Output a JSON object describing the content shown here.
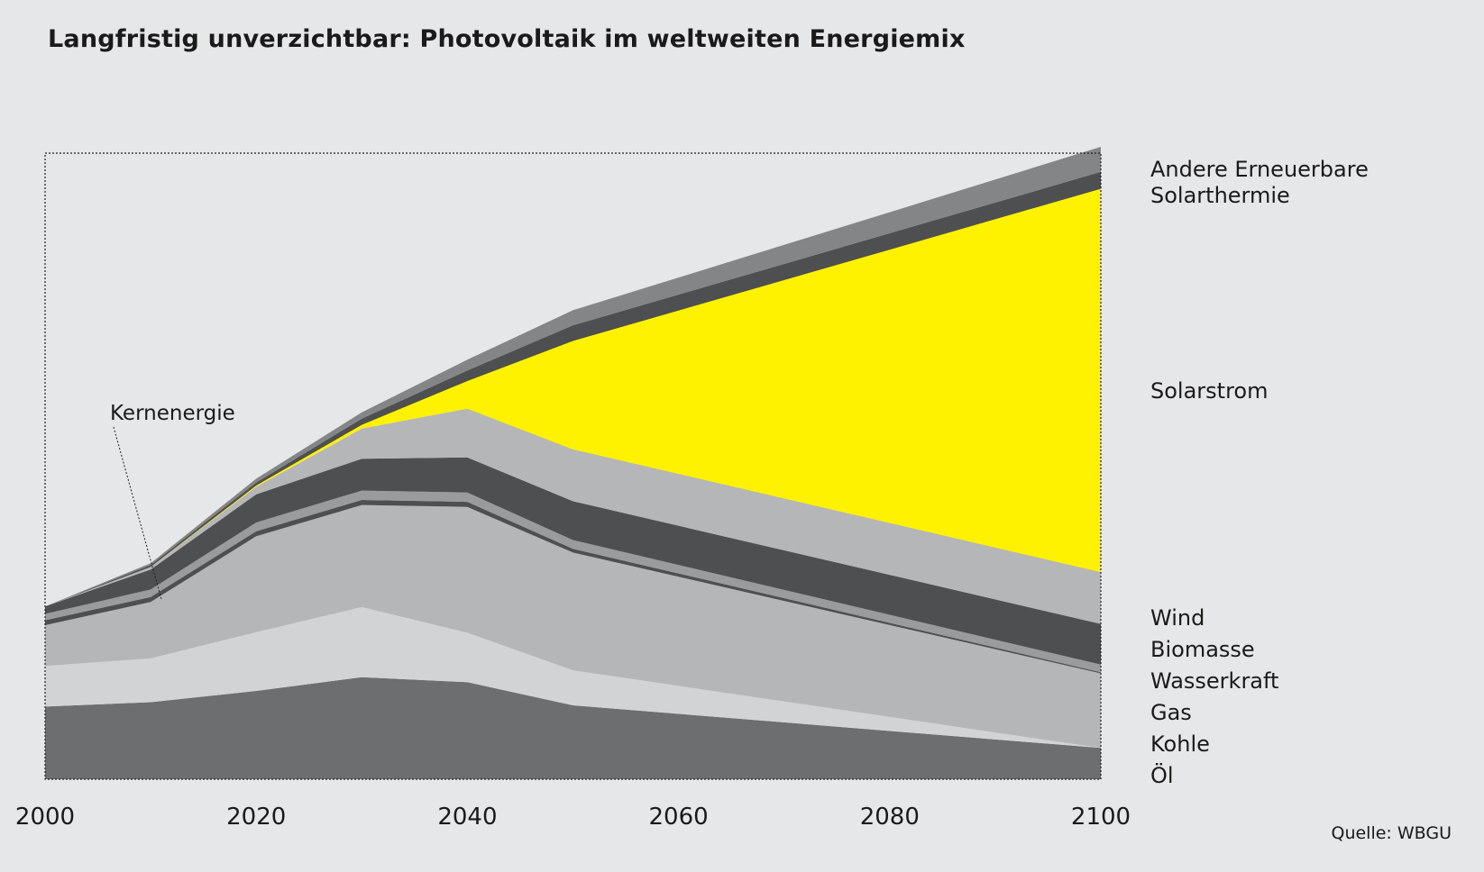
{
  "title": "Langfristig unverzichtbar: Photovoltaik im weltweiten Energiemix",
  "source": "Quelle: WBGU",
  "chart_data": {
    "type": "area",
    "stacked": true,
    "x": [
      2000,
      2010,
      2020,
      2030,
      2040,
      2050,
      2100
    ],
    "xlim": [
      2000,
      2100
    ],
    "xticks": [
      "2000",
      "2020",
      "2040",
      "2060",
      "2080",
      "2100"
    ],
    "ylim": [
      0,
      1
    ],
    "y_axis_labels_shown": false,
    "grid": false,
    "legend": "right, labels next to series",
    "series": [
      {
        "name": "Öl",
        "color": "#6d6e70",
        "values": [
          0.116,
          0.123,
          0.141,
          0.163,
          0.155,
          0.118,
          0.05
        ]
      },
      {
        "name": "Kohle",
        "color": "#d2d3d5",
        "values": [
          0.065,
          0.07,
          0.094,
          0.112,
          0.079,
          0.056,
          0.0
        ]
      },
      {
        "name": "Gas",
        "color": "#b5b6b8",
        "values": [
          0.065,
          0.09,
          0.153,
          0.163,
          0.201,
          0.188,
          0.119
        ]
      },
      {
        "name": "Kernenergie",
        "color": "#4e4f51",
        "values": [
          0.008,
          0.008,
          0.008,
          0.008,
          0.008,
          0.006,
          0.002
        ]
      },
      {
        "name": "Wasserkraft",
        "color": "#9a9b9d",
        "values": [
          0.01,
          0.012,
          0.014,
          0.015,
          0.015,
          0.014,
          0.012
        ]
      },
      {
        "name": "Biomasse",
        "color": "#4e4f51",
        "values": [
          0.012,
          0.032,
          0.045,
          0.051,
          0.056,
          0.062,
          0.065
        ]
      },
      {
        "name": "Wind",
        "color": "#b5b6b8",
        "values": [
          0.0,
          0.004,
          0.012,
          0.048,
          0.078,
          0.083,
          0.083
        ]
      },
      {
        "name": "Solarstrom",
        "color": "#fff200",
        "values": [
          0.0,
          0.0,
          0.002,
          0.006,
          0.044,
          0.173,
          0.612
        ]
      },
      {
        "name": "Solarthermie",
        "color": "#4e4f51",
        "values": [
          0.0,
          0.003,
          0.005,
          0.01,
          0.017,
          0.025,
          0.027
        ]
      },
      {
        "name": "Andere Erneuerbare",
        "color": "#848587",
        "values": [
          0.0,
          0.003,
          0.006,
          0.01,
          0.017,
          0.024,
          0.04
        ]
      }
    ],
    "annotations": [
      {
        "text": "Kernenergie",
        "target_x": 2010,
        "target_series": "Kernenergie"
      }
    ]
  }
}
